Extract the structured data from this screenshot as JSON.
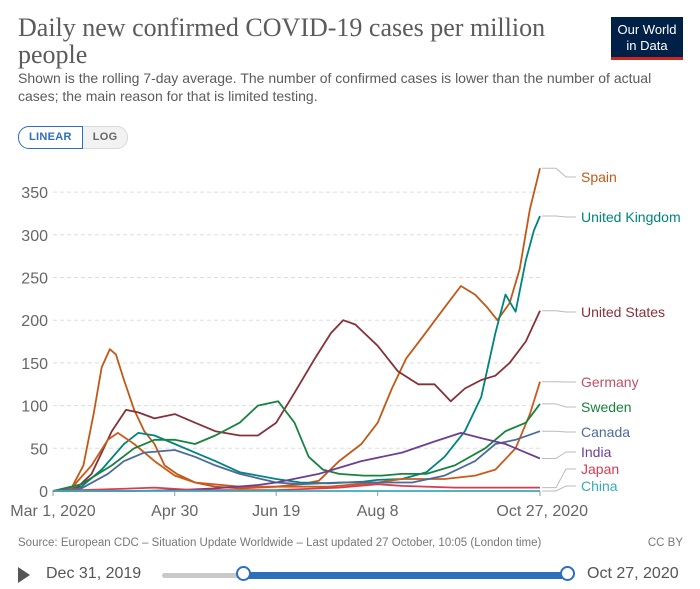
{
  "header": {
    "title": "Daily new confirmed COVID-19 cases per million people",
    "subtitle": "Shown is the rolling 7-day average. The number of confirmed cases is lower than the number of actual cases; the main reason for that is limited testing.",
    "logo_line1": "Our World",
    "logo_line2": "in Data"
  },
  "controls": {
    "linear_label": "LINEAR",
    "log_label": "LOG",
    "selected": "LINEAR"
  },
  "footer": {
    "source": "Source: European CDC – Situation Update Worldwide – Last updated 27 October, 10:05 (London time)",
    "license": "CC BY"
  },
  "timeline": {
    "start_label": "Dec 31, 2019",
    "end_label": "Oct 27, 2020",
    "range_start_date": "Mar 1, 2020",
    "range_end_date": "Oct 27, 2020"
  },
  "colors": {
    "brand": "#002147",
    "brand_accent": "#ce261e",
    "control_accent": "#2c6fbd"
  },
  "chart_data": {
    "type": "line",
    "xlabel": "",
    "ylabel": "",
    "y_ticks": [
      0,
      50,
      100,
      150,
      200,
      250,
      300,
      350
    ],
    "ylim": [
      0,
      380
    ],
    "x_tick_labels": [
      "Mar 1, 2020",
      "Apr 30",
      "Jun 19",
      "Aug 8",
      "Oct 27, 2020"
    ],
    "x_tick_dates": [
      "2020-03-01",
      "2020-04-30",
      "2020-06-19",
      "2020-08-08",
      "2020-10-27"
    ],
    "xlim": [
      "2020-03-01",
      "2020-10-27"
    ],
    "grid": "horizontal dashed",
    "legend": "right, labels at line ends",
    "series": [
      {
        "name": "Spain",
        "color": "#c05917",
        "points": [
          [
            "2020-03-01",
            0
          ],
          [
            "2020-03-10",
            3
          ],
          [
            "2020-03-16",
            30
          ],
          [
            "2020-03-21",
            90
          ],
          [
            "2020-03-25",
            145
          ],
          [
            "2020-03-29",
            166
          ],
          [
            "2020-04-01",
            160
          ],
          [
            "2020-04-05",
            130
          ],
          [
            "2020-04-10",
            95
          ],
          [
            "2020-04-15",
            70
          ],
          [
            "2020-04-20",
            55
          ],
          [
            "2020-04-25",
            30
          ],
          [
            "2020-05-01",
            20
          ],
          [
            "2020-05-10",
            10
          ],
          [
            "2020-05-20",
            5
          ],
          [
            "2020-06-01",
            3
          ],
          [
            "2020-06-19",
            5
          ],
          [
            "2020-07-01",
            8
          ],
          [
            "2020-07-10",
            12
          ],
          [
            "2020-07-20",
            35
          ],
          [
            "2020-07-31",
            55
          ],
          [
            "2020-08-08",
            80
          ],
          [
            "2020-08-15",
            120
          ],
          [
            "2020-08-22",
            155
          ],
          [
            "2020-08-30",
            180
          ],
          [
            "2020-09-10",
            215
          ],
          [
            "2020-09-18",
            240
          ],
          [
            "2020-09-25",
            230
          ],
          [
            "2020-10-01",
            215
          ],
          [
            "2020-10-06",
            200
          ],
          [
            "2020-10-12",
            220
          ],
          [
            "2020-10-17",
            260
          ],
          [
            "2020-10-22",
            330
          ],
          [
            "2020-10-27",
            378
          ]
        ]
      },
      {
        "name": "United Kingdom",
        "color": "#00847e",
        "points": [
          [
            "2020-03-01",
            0
          ],
          [
            "2020-03-15",
            5
          ],
          [
            "2020-03-25",
            25
          ],
          [
            "2020-04-05",
            55
          ],
          [
            "2020-04-12",
            68
          ],
          [
            "2020-04-20",
            65
          ],
          [
            "2020-04-30",
            55
          ],
          [
            "2020-05-10",
            45
          ],
          [
            "2020-05-20",
            35
          ],
          [
            "2020-06-01",
            22
          ],
          [
            "2020-06-19",
            14
          ],
          [
            "2020-07-01",
            10
          ],
          [
            "2020-07-15",
            9
          ],
          [
            "2020-08-01",
            11
          ],
          [
            "2020-08-08",
            13
          ],
          [
            "2020-08-20",
            14
          ],
          [
            "2020-09-01",
            22
          ],
          [
            "2020-09-10",
            40
          ],
          [
            "2020-09-20",
            70
          ],
          [
            "2020-09-28",
            110
          ],
          [
            "2020-10-05",
            185
          ],
          [
            "2020-10-10",
            230
          ],
          [
            "2020-10-15",
            210
          ],
          [
            "2020-10-20",
            270
          ],
          [
            "2020-10-24",
            305
          ],
          [
            "2020-10-27",
            322
          ]
        ]
      },
      {
        "name": "United States",
        "color": "#883039",
        "points": [
          [
            "2020-03-01",
            0
          ],
          [
            "2020-03-12",
            2
          ],
          [
            "2020-03-20",
            20
          ],
          [
            "2020-03-30",
            70
          ],
          [
            "2020-04-06",
            95
          ],
          [
            "2020-04-12",
            92
          ],
          [
            "2020-04-20",
            85
          ],
          [
            "2020-04-30",
            90
          ],
          [
            "2020-05-10",
            80
          ],
          [
            "2020-05-20",
            70
          ],
          [
            "2020-06-01",
            65
          ],
          [
            "2020-06-10",
            65
          ],
          [
            "2020-06-19",
            80
          ],
          [
            "2020-06-28",
            115
          ],
          [
            "2020-07-08",
            155
          ],
          [
            "2020-07-16",
            185
          ],
          [
            "2020-07-22",
            200
          ],
          [
            "2020-07-28",
            195
          ],
          [
            "2020-08-08",
            170
          ],
          [
            "2020-08-18",
            140
          ],
          [
            "2020-08-28",
            125
          ],
          [
            "2020-09-05",
            125
          ],
          [
            "2020-09-13",
            105
          ],
          [
            "2020-09-20",
            120
          ],
          [
            "2020-09-28",
            130
          ],
          [
            "2020-10-05",
            135
          ],
          [
            "2020-10-12",
            150
          ],
          [
            "2020-10-20",
            175
          ],
          [
            "2020-10-27",
            211
          ]
        ]
      },
      {
        "name": "Germany",
        "color": "#c15065",
        "line_color": "#cc5a1b",
        "points": [
          [
            "2020-03-01",
            0
          ],
          [
            "2020-03-10",
            3
          ],
          [
            "2020-03-20",
            30
          ],
          [
            "2020-03-28",
            60
          ],
          [
            "2020-04-02",
            68
          ],
          [
            "2020-04-10",
            55
          ],
          [
            "2020-04-20",
            35
          ],
          [
            "2020-04-30",
            18
          ],
          [
            "2020-05-10",
            10
          ],
          [
            "2020-06-01",
            5
          ],
          [
            "2020-06-19",
            5
          ],
          [
            "2020-07-01",
            5
          ],
          [
            "2020-07-15",
            5
          ],
          [
            "2020-08-08",
            10
          ],
          [
            "2020-08-20",
            14
          ],
          [
            "2020-09-10",
            14
          ],
          [
            "2020-09-25",
            18
          ],
          [
            "2020-10-05",
            25
          ],
          [
            "2020-10-15",
            50
          ],
          [
            "2020-10-22",
            90
          ],
          [
            "2020-10-27",
            128
          ]
        ]
      },
      {
        "name": "Sweden",
        "color": "#18823f",
        "points": [
          [
            "2020-03-01",
            0
          ],
          [
            "2020-03-15",
            8
          ],
          [
            "2020-03-30",
            30
          ],
          [
            "2020-04-10",
            50
          ],
          [
            "2020-04-20",
            60
          ],
          [
            "2020-04-30",
            60
          ],
          [
            "2020-05-10",
            55
          ],
          [
            "2020-05-20",
            65
          ],
          [
            "2020-06-01",
            80
          ],
          [
            "2020-06-10",
            100
          ],
          [
            "2020-06-20",
            105
          ],
          [
            "2020-06-28",
            80
          ],
          [
            "2020-07-05",
            40
          ],
          [
            "2020-07-12",
            25
          ],
          [
            "2020-07-20",
            20
          ],
          [
            "2020-08-01",
            18
          ],
          [
            "2020-08-10",
            18
          ],
          [
            "2020-08-20",
            20
          ],
          [
            "2020-09-01",
            20
          ],
          [
            "2020-09-15",
            30
          ],
          [
            "2020-09-30",
            50
          ],
          [
            "2020-10-10",
            70
          ],
          [
            "2020-10-20",
            80
          ],
          [
            "2020-10-27",
            102
          ]
        ]
      },
      {
        "name": "Canada",
        "color": "#4c6a9c",
        "points": [
          [
            "2020-03-01",
            0
          ],
          [
            "2020-03-15",
            3
          ],
          [
            "2020-03-28",
            20
          ],
          [
            "2020-04-05",
            35
          ],
          [
            "2020-04-15",
            45
          ],
          [
            "2020-04-30",
            48
          ],
          [
            "2020-05-10",
            40
          ],
          [
            "2020-05-20",
            30
          ],
          [
            "2020-06-01",
            20
          ],
          [
            "2020-06-19",
            10
          ],
          [
            "2020-07-01",
            8
          ],
          [
            "2020-07-20",
            10
          ],
          [
            "2020-08-08",
            10
          ],
          [
            "2020-08-25",
            10
          ],
          [
            "2020-09-10",
            18
          ],
          [
            "2020-09-25",
            35
          ],
          [
            "2020-10-05",
            55
          ],
          [
            "2020-10-15",
            60
          ],
          [
            "2020-10-27",
            70
          ]
        ]
      },
      {
        "name": "India",
        "color": "#6d3e91",
        "points": [
          [
            "2020-03-01",
            0
          ],
          [
            "2020-04-10",
            0
          ],
          [
            "2020-05-01",
            1
          ],
          [
            "2020-05-20",
            3
          ],
          [
            "2020-06-10",
            7
          ],
          [
            "2020-06-19",
            10
          ],
          [
            "2020-07-10",
            20
          ],
          [
            "2020-07-31",
            35
          ],
          [
            "2020-08-20",
            45
          ],
          [
            "2020-09-05",
            58
          ],
          [
            "2020-09-18",
            68
          ],
          [
            "2020-09-28",
            62
          ],
          [
            "2020-10-10",
            55
          ],
          [
            "2020-10-20",
            45
          ],
          [
            "2020-10-27",
            38
          ]
        ]
      },
      {
        "name": "Japan",
        "color": "#d73c50",
        "points": [
          [
            "2020-03-01",
            0
          ],
          [
            "2020-04-10",
            3
          ],
          [
            "2020-04-20",
            4
          ],
          [
            "2020-05-10",
            1
          ],
          [
            "2020-06-19",
            1
          ],
          [
            "2020-07-20",
            4
          ],
          [
            "2020-08-08",
            8
          ],
          [
            "2020-08-20",
            6
          ],
          [
            "2020-09-15",
            4
          ],
          [
            "2020-10-27",
            4
          ]
        ]
      },
      {
        "name": "China",
        "color": "#38aaba",
        "points": [
          [
            "2020-03-01",
            0
          ],
          [
            "2020-10-27",
            0
          ]
        ]
      }
    ]
  }
}
